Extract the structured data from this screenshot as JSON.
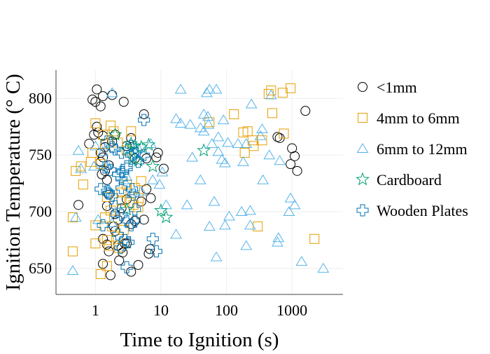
{
  "chart_data": {
    "type": "scatter",
    "title": "",
    "xlabel": "Time to Ignition (s)",
    "ylabel": "Ignition Temperature (° C)",
    "x_scale": "log",
    "xlim": [
      0.25,
      6000
    ],
    "ylim": [
      627,
      825
    ],
    "x_ticks": [
      1,
      10,
      100,
      1000
    ],
    "x_tick_labels": [
      "1",
      "10",
      "100",
      "1000"
    ],
    "y_ticks": [
      650,
      700,
      750,
      800
    ],
    "y_tick_labels": [
      "650",
      "700",
      "750",
      "800"
    ],
    "grid": true,
    "legend_position": "right",
    "series": [
      {
        "name": "<1mm",
        "marker": "circle",
        "color": "#000000",
        "points": [
          [
            0.9,
            799
          ],
          [
            1.05,
            808
          ],
          [
            1.0,
            797
          ],
          [
            1.2,
            793
          ],
          [
            1.3,
            802
          ],
          [
            1.8,
            803
          ],
          [
            2.7,
            797
          ],
          [
            1.05,
            775
          ],
          [
            1.1,
            770
          ],
          [
            1.3,
            767
          ],
          [
            0.95,
            768
          ],
          [
            1.2,
            752
          ],
          [
            1.4,
            757
          ],
          [
            1.3,
            748
          ],
          [
            1.2,
            744
          ],
          [
            1.4,
            736
          ],
          [
            1.25,
            733
          ],
          [
            1.6,
            741
          ],
          [
            1.5,
            728
          ],
          [
            1.8,
            762
          ],
          [
            2.0,
            768
          ],
          [
            3.0,
            758
          ],
          [
            3.5,
            765
          ],
          [
            4.0,
            747
          ],
          [
            5.5,
            786
          ],
          [
            6.0,
            747
          ],
          [
            9.0,
            752
          ],
          [
            8.5,
            748
          ],
          [
            11.0,
            738
          ],
          [
            0.8,
            760
          ],
          [
            1.6,
            715
          ],
          [
            1.5,
            705
          ],
          [
            0.55,
            706
          ],
          [
            2.5,
            703
          ],
          [
            2.0,
            698
          ],
          [
            2.2,
            693
          ],
          [
            3.0,
            711
          ],
          [
            4.0,
            692
          ],
          [
            5.0,
            709
          ],
          [
            6.0,
            720
          ],
          [
            7.0,
            712
          ],
          [
            5.5,
            693
          ],
          [
            3.5,
            689
          ],
          [
            2.8,
            672
          ],
          [
            2.2,
            670
          ],
          [
            2.5,
            668
          ],
          [
            2.6,
            664
          ],
          [
            1.3,
            676
          ],
          [
            1.5,
            671
          ],
          [
            1.6,
            665
          ],
          [
            2.3,
            657
          ],
          [
            1.3,
            654
          ],
          [
            1.7,
            644
          ],
          [
            3.0,
            672
          ],
          [
            3.5,
            647
          ],
          [
            4.5,
            653
          ],
          [
            6.5,
            663
          ],
          [
            6.8,
            667
          ],
          [
            2.0,
            683
          ],
          [
            1.9,
            687
          ],
          [
            600,
            766
          ],
          [
            650,
            765
          ],
          [
            1000,
            756
          ],
          [
            1100,
            749
          ],
          [
            950,
            742
          ],
          [
            1200,
            736
          ],
          [
            1600,
            789
          ]
        ]
      },
      {
        "name": "4mm to 6mm",
        "marker": "square",
        "color": "#e69f00",
        "points": [
          [
            1.0,
            778
          ],
          [
            1.3,
            768
          ],
          [
            1.7,
            776
          ],
          [
            1.9,
            771
          ],
          [
            0.9,
            752
          ],
          [
            0.85,
            744
          ],
          [
            1.4,
            760
          ],
          [
            2.2,
            761
          ],
          [
            3.0,
            754
          ],
          [
            3.5,
            771
          ],
          [
            0.6,
            740
          ],
          [
            0.5,
            736
          ],
          [
            1.2,
            742
          ],
          [
            0.65,
            724
          ],
          [
            1.5,
            713
          ],
          [
            2.5,
            717
          ],
          [
            3.0,
            724
          ],
          [
            3.3,
            708
          ],
          [
            4.0,
            721
          ],
          [
            4.6,
            712
          ],
          [
            5.0,
            727
          ],
          [
            4.5,
            704
          ],
          [
            3.8,
            706
          ],
          [
            2.5,
            710
          ],
          [
            1.7,
            701
          ],
          [
            1.4,
            695
          ],
          [
            0.45,
            695
          ],
          [
            1.0,
            688
          ],
          [
            1.8,
            687
          ],
          [
            2.7,
            684
          ],
          [
            2.2,
            678
          ],
          [
            1.5,
            675
          ],
          [
            1.0,
            672
          ],
          [
            1.6,
            670
          ],
          [
            2.3,
            668
          ],
          [
            0.45,
            665
          ],
          [
            1.5,
            652
          ],
          [
            1.2,
            645
          ],
          [
            55,
            779
          ],
          [
            130,
            786
          ],
          [
            180,
            770
          ],
          [
            210,
            771
          ],
          [
            190,
            752
          ],
          [
            250,
            763
          ],
          [
            260,
            758
          ],
          [
            350,
            763
          ],
          [
            500,
            787
          ],
          [
            440,
            804
          ],
          [
            480,
            807
          ],
          [
            720,
            805
          ],
          [
            750,
            769
          ],
          [
            950,
            809
          ],
          [
            300,
            687
          ],
          [
            2200,
            676
          ]
        ]
      },
      {
        "name": "6mm to 12mm",
        "marker": "triangle",
        "color": "#56b4e9",
        "points": [
          [
            1.8,
            805
          ],
          [
            0.55,
            754
          ],
          [
            1.0,
            758
          ],
          [
            1.3,
            753
          ],
          [
            0.6,
            738
          ],
          [
            0.95,
            740
          ],
          [
            1.5,
            742
          ],
          [
            2.5,
            738
          ],
          [
            3.0,
            731
          ],
          [
            1.6,
            720
          ],
          [
            2.7,
            728
          ],
          [
            4.5,
            756
          ],
          [
            7.0,
            760
          ],
          [
            9.5,
            724
          ],
          [
            7.5,
            728
          ],
          [
            10.5,
            735
          ],
          [
            12.0,
            706
          ],
          [
            1.1,
            693
          ],
          [
            0.5,
            695
          ],
          [
            1.8,
            690
          ],
          [
            2.0,
            699
          ],
          [
            3.5,
            716
          ],
          [
            5.0,
            718
          ],
          [
            0.45,
            648
          ],
          [
            20,
            808
          ],
          [
            17,
            782
          ],
          [
            20,
            778
          ],
          [
            28,
            777
          ],
          [
            30,
            748
          ],
          [
            25,
            706
          ],
          [
            17,
            680
          ],
          [
            40,
            728
          ],
          [
            45,
            786
          ],
          [
            52,
            784
          ],
          [
            53,
            777
          ],
          [
            40,
            774
          ],
          [
            45,
            771
          ],
          [
            50,
            805
          ],
          [
            55,
            808
          ],
          [
            70,
            808
          ],
          [
            60,
            760
          ],
          [
            75,
            753
          ],
          [
            85,
            746
          ],
          [
            95,
            743
          ],
          [
            75,
            766
          ],
          [
            90,
            781
          ],
          [
            105,
            761
          ],
          [
            150,
            760
          ],
          [
            200,
            760
          ],
          [
            180,
            744
          ],
          [
            55,
            687
          ],
          [
            65,
            709
          ],
          [
            95,
            688
          ],
          [
            110,
            696
          ],
          [
            170,
            700
          ],
          [
            200,
            670
          ],
          [
            230,
            701
          ],
          [
            230,
            688
          ],
          [
            70,
            660
          ],
          [
            240,
            795
          ],
          [
            330,
            767
          ],
          [
            350,
            773
          ],
          [
            360,
            728
          ],
          [
            450,
            750
          ],
          [
            480,
            803
          ],
          [
            650,
            745
          ],
          [
            950,
            712
          ],
          [
            1100,
            706
          ],
          [
            900,
            700
          ],
          [
            620,
            677
          ],
          [
            600,
            673
          ],
          [
            1400,
            656
          ],
          [
            3000,
            650
          ]
        ]
      },
      {
        "name": "Cardboard",
        "marker": "star",
        "color": "#009e73",
        "points": [
          [
            2.0,
            768
          ],
          [
            3.0,
            755
          ],
          [
            3.5,
            760
          ],
          [
            4.0,
            758
          ],
          [
            5.0,
            757
          ],
          [
            3.8,
            747
          ],
          [
            4.5,
            745
          ],
          [
            6.5,
            759
          ],
          [
            7.5,
            740
          ],
          [
            3.0,
            702
          ],
          [
            10.0,
            701
          ],
          [
            12.0,
            695
          ],
          [
            45,
            754
          ]
        ]
      },
      {
        "name": "Wooden Plates",
        "marker": "plus",
        "color": "#0072b2",
        "points": [
          [
            1.5,
            762
          ],
          [
            1.8,
            757
          ],
          [
            2.0,
            755
          ],
          [
            2.5,
            752
          ],
          [
            1.4,
            739
          ],
          [
            1.7,
            737
          ],
          [
            2.2,
            733
          ],
          [
            2.6,
            735
          ],
          [
            3.0,
            740
          ],
          [
            3.5,
            750
          ],
          [
            4.0,
            752
          ],
          [
            4.5,
            744
          ],
          [
            5.5,
            750
          ],
          [
            3.0,
            738
          ],
          [
            2.5,
            729
          ],
          [
            5.5,
            781
          ],
          [
            3.5,
            758
          ],
          [
            1.2,
            720
          ],
          [
            1.5,
            718
          ],
          [
            1.6,
            716
          ],
          [
            2.5,
            721
          ],
          [
            3.6,
            720
          ],
          [
            3.8,
            715
          ],
          [
            1.8,
            714
          ],
          [
            2.0,
            705
          ],
          [
            2.5,
            697
          ],
          [
            3.0,
            692
          ],
          [
            3.5,
            688
          ],
          [
            4.0,
            692
          ],
          [
            4.0,
            702
          ],
          [
            1.3,
            688
          ],
          [
            2.2,
            680
          ],
          [
            2.8,
            675
          ],
          [
            3.2,
            673
          ],
          [
            2.4,
            668
          ],
          [
            7.5,
            676
          ],
          [
            8.5,
            665
          ],
          [
            3.0,
            651
          ]
        ]
      }
    ]
  }
}
